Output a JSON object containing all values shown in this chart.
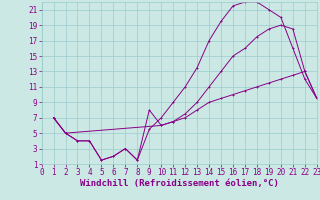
{
  "xlabel": "Windchill (Refroidissement éolien,°C)",
  "bg_color": "#cce8e4",
  "grid_color": "#99cccc",
  "line_color": "#880088",
  "xlim": [
    0,
    23
  ],
  "ylim": [
    1,
    22
  ],
  "xticks": [
    0,
    1,
    2,
    3,
    4,
    5,
    6,
    7,
    8,
    9,
    10,
    11,
    12,
    13,
    14,
    15,
    16,
    17,
    18,
    19,
    20,
    21,
    22,
    23
  ],
  "yticks": [
    1,
    3,
    5,
    7,
    9,
    11,
    13,
    15,
    17,
    19,
    21
  ],
  "line1_x": [
    1,
    2,
    3,
    4,
    5,
    6,
    7,
    8,
    9,
    10,
    11,
    12,
    13,
    14,
    15,
    16,
    17,
    18,
    19,
    20,
    21,
    22,
    23
  ],
  "line1_y": [
    7,
    5,
    4,
    4,
    1.5,
    2,
    3,
    1.5,
    8,
    6,
    6.5,
    7,
    8,
    9,
    9.5,
    10,
    10.5,
    11,
    11.5,
    12,
    12.5,
    13,
    9.5
  ],
  "line2_x": [
    1,
    2,
    3,
    4,
    5,
    6,
    7,
    8,
    9,
    10,
    11,
    12,
    13,
    14,
    15,
    16,
    17,
    18,
    19,
    20,
    21,
    22,
    23
  ],
  "line2_y": [
    7,
    5,
    4,
    4,
    1.5,
    2,
    3,
    1.5,
    5.5,
    7,
    9,
    11,
    13.5,
    17,
    19.5,
    21.5,
    22,
    22,
    21,
    20,
    16,
    12,
    9.5
  ],
  "line3_x": [
    1,
    2,
    10,
    11,
    12,
    13,
    14,
    15,
    16,
    17,
    18,
    19,
    20,
    21,
    22,
    23
  ],
  "line3_y": [
    7,
    5,
    6,
    6.5,
    7.5,
    9,
    11,
    13,
    15,
    16,
    17.5,
    18.5,
    19,
    18.5,
    13,
    9.5
  ],
  "tick_fontsize": 5.5,
  "xlabel_fontsize": 6.5,
  "linewidth": 0.7,
  "markersize": 2.0
}
